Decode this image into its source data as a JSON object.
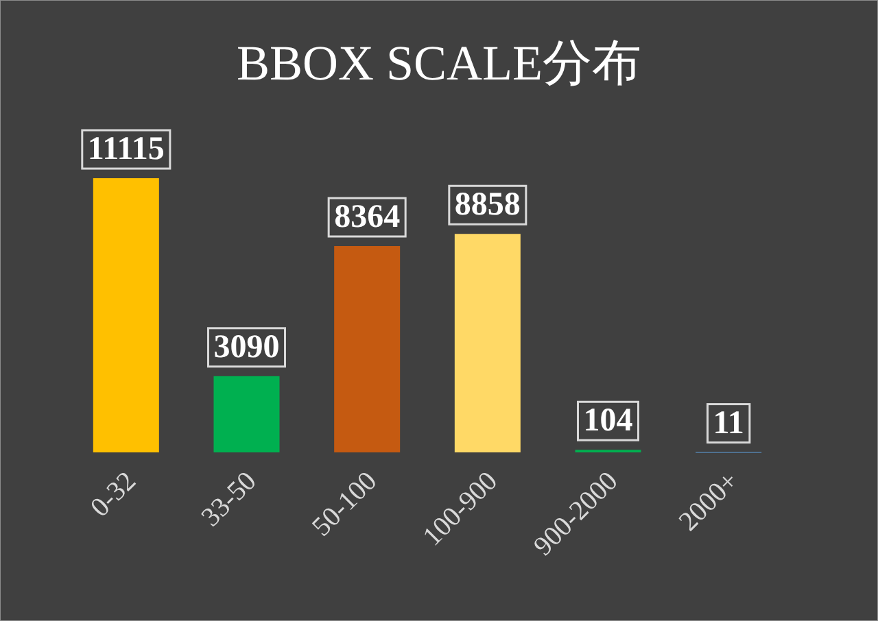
{
  "chart_data": {
    "type": "bar",
    "title": "BBOX SCALE分布",
    "categories": [
      "0-32",
      "33-50",
      "50-100",
      "100-900",
      "900-2000",
      "2000+"
    ],
    "values": [
      11115,
      3090,
      8364,
      8858,
      104,
      11
    ],
    "colors": [
      "#ffc000",
      "#00b050",
      "#c55a11",
      "#ffd966",
      "#00b050",
      "#5b9bd5"
    ],
    "data_labels": true
  }
}
